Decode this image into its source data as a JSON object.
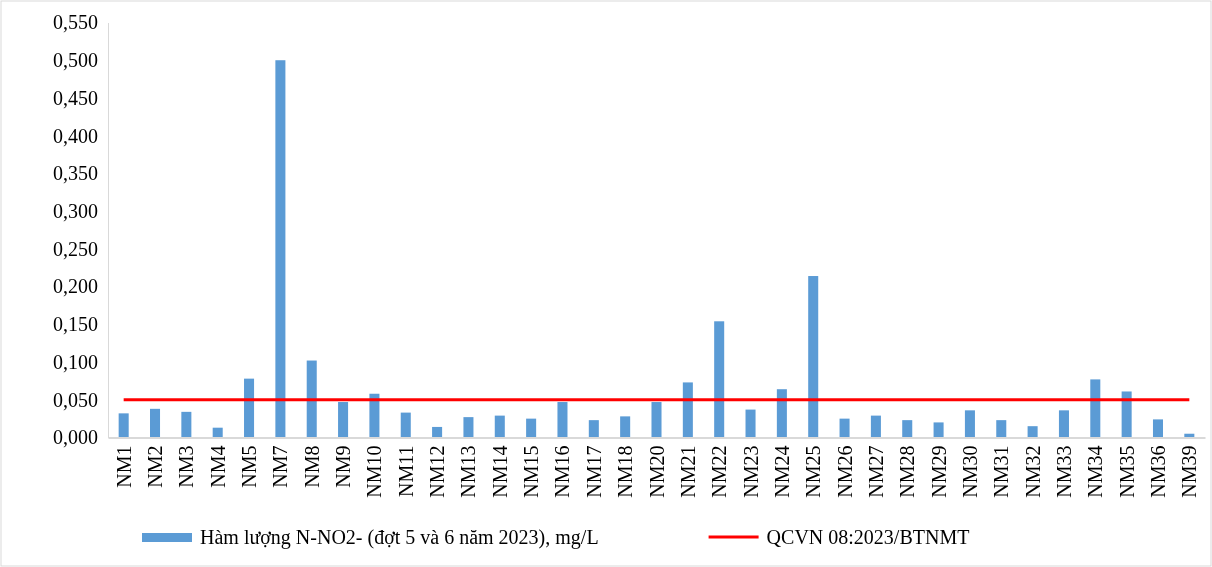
{
  "chart_data": {
    "type": "bar",
    "categories": [
      "NM1",
      "NM2",
      "NM3",
      "NM4",
      "NM5",
      "NM7",
      "NM8",
      "NM9",
      "NM10",
      "NM11",
      "NM12",
      "NM13",
      "NM14",
      "NM15",
      "NM16",
      "NM17",
      "NM18",
      "NM20",
      "NM21",
      "NM22",
      "NM23",
      "NM24",
      "NM25",
      "NM26",
      "NM27",
      "NM28",
      "NM29",
      "NM30",
      "NM31",
      "NM32",
      "NM33",
      "NM34",
      "NM35",
      "NM36",
      "NM39"
    ],
    "series": [
      {
        "name": "Hàm lượng N-NO2- (đợt 5 và 6 năm 2023), mg/L",
        "color": "#5b9bd5",
        "values": [
          0.032,
          0.038,
          0.034,
          0.013,
          0.078,
          0.5,
          0.102,
          0.047,
          0.058,
          0.033,
          0.014,
          0.027,
          0.029,
          0.025,
          0.047,
          0.023,
          0.028,
          0.047,
          0.073,
          0.154,
          0.037,
          0.064,
          0.214,
          0.025,
          0.029,
          0.023,
          0.02,
          0.036,
          0.023,
          0.015,
          0.036,
          0.077,
          0.061,
          0.024,
          0.005
        ]
      },
      {
        "type": "line",
        "name": "QCVN 08:2023/BTNMT",
        "color": "#ff0000",
        "values": [
          0.05,
          0.05,
          0.05,
          0.05,
          0.05,
          0.05,
          0.05,
          0.05,
          0.05,
          0.05,
          0.05,
          0.05,
          0.05,
          0.05,
          0.05,
          0.05,
          0.05,
          0.05,
          0.05,
          0.05,
          0.05,
          0.05,
          0.05,
          0.05,
          0.05,
          0.05,
          0.05,
          0.05,
          0.05,
          0.05,
          0.05,
          0.05,
          0.05,
          0.05,
          0.05
        ]
      }
    ],
    "ylim": [
      0,
      0.55
    ],
    "yticks": [
      {
        "value": 0,
        "label": "0,000"
      },
      {
        "value": 0.05,
        "label": "0,050"
      },
      {
        "value": 0.1,
        "label": "0,100"
      },
      {
        "value": 0.15,
        "label": "0,150"
      },
      {
        "value": 0.2,
        "label": "0,200"
      },
      {
        "value": 0.25,
        "label": "0,250"
      },
      {
        "value": 0.3,
        "label": "0,300"
      },
      {
        "value": 0.35,
        "label": "0,350"
      },
      {
        "value": 0.4,
        "label": "0,400"
      },
      {
        "value": 0.45,
        "label": "0,450"
      },
      {
        "value": 0.5,
        "label": "0,500"
      },
      {
        "value": 0.55,
        "label": "0,550"
      }
    ],
    "line_style": "solid",
    "grid": false,
    "legend": "bottom"
  }
}
